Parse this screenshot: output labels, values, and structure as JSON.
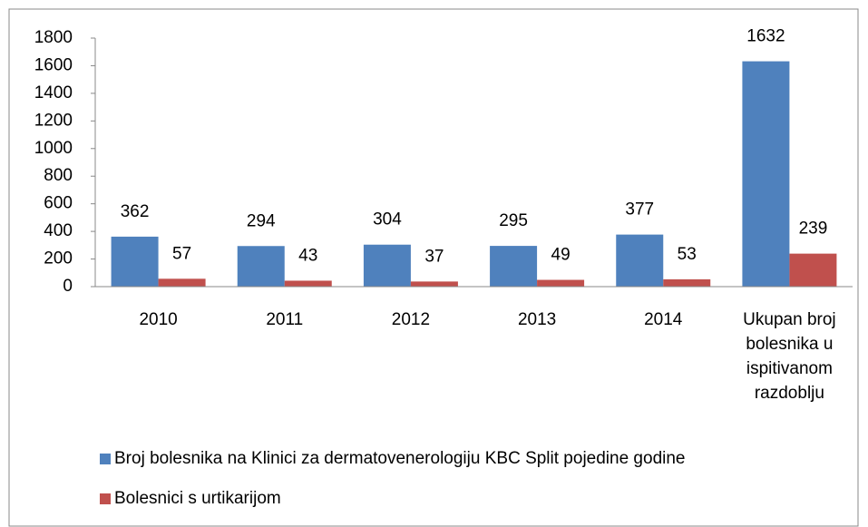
{
  "chart_data": {
    "type": "bar",
    "categories": [
      "2010",
      "2011",
      "2012",
      "2013",
      "2014",
      "Ukupan broj bolesnika u ispitivanom razdoblju"
    ],
    "series": [
      {
        "name": "Broj bolesnika na Klinici za dermatovenerologiju KBC Split pojedine godine",
        "color": "#4f81bd",
        "values": [
          362,
          294,
          304,
          295,
          377,
          1632
        ]
      },
      {
        "name": "Bolesnici s urtikarijom",
        "color": "#c0504d",
        "values": [
          57,
          43,
          37,
          49,
          53,
          239
        ]
      }
    ],
    "ylim": [
      0,
      1800
    ],
    "yticks": [
      0,
      200,
      400,
      600,
      800,
      1000,
      1200,
      1400,
      1600,
      1800
    ],
    "grid": false,
    "legend": "bottom"
  }
}
